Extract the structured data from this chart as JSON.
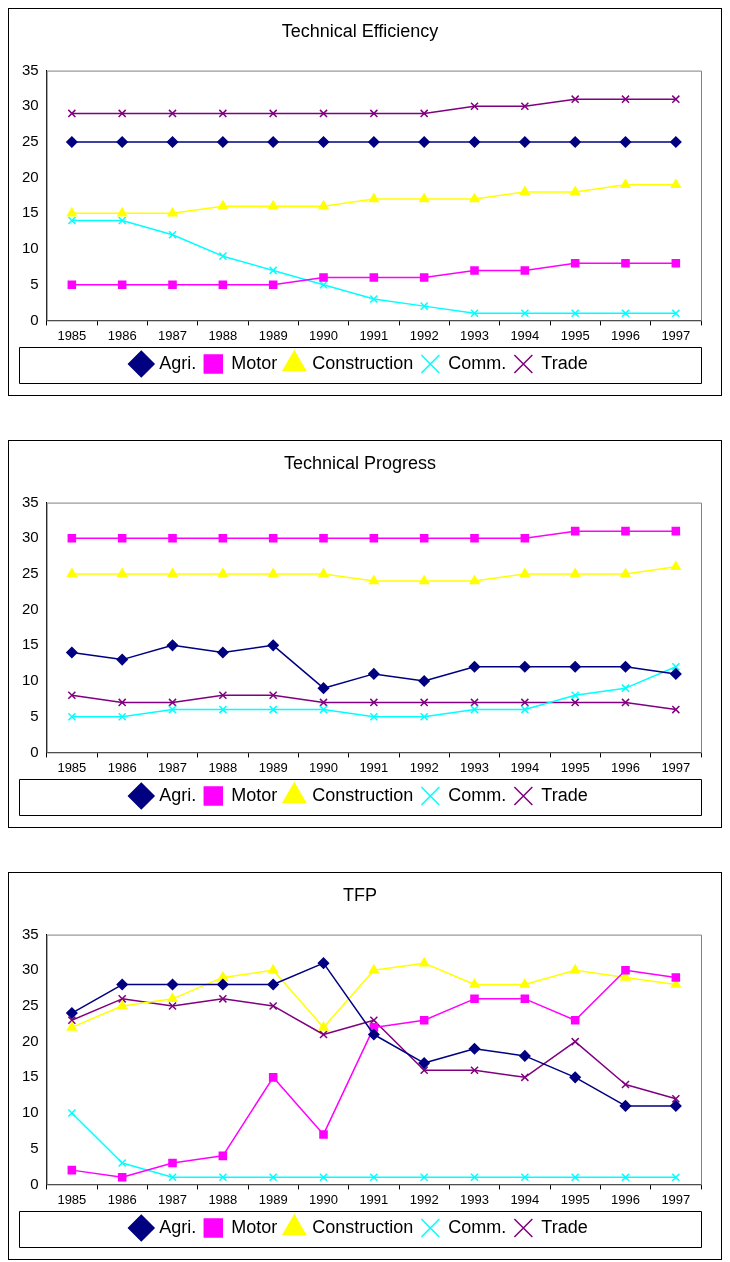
{
  "chart_data": [
    {
      "type": "line",
      "title": "Technical Efficiency",
      "categories": [
        "1985",
        "1986",
        "1987",
        "1988",
        "1989",
        "1990",
        "1991",
        "1992",
        "1993",
        "1994",
        "1995",
        "1996",
        "1997"
      ],
      "ylim": [
        0,
        35
      ],
      "yticks": [
        0,
        5,
        10,
        15,
        20,
        25,
        30,
        35
      ],
      "legend": "bottom",
      "series": [
        {
          "name": "Agri.",
          "color": "#000080",
          "marker": "diamond",
          "values": [
            25,
            25,
            25,
            25,
            25,
            25,
            25,
            25,
            25,
            25,
            25,
            25,
            25
          ]
        },
        {
          "name": "Motor",
          "color": "#ff00ff",
          "marker": "square",
          "values": [
            5,
            5,
            5,
            5,
            5,
            6,
            6,
            6,
            7,
            7,
            8,
            8,
            8
          ]
        },
        {
          "name": "Construction",
          "color": "#ffff00",
          "marker": "triangle",
          "values": [
            15,
            15,
            15,
            16,
            16,
            16,
            17,
            17,
            17,
            18,
            18,
            19,
            19
          ]
        },
        {
          "name": "Comm.",
          "color": "#00ffff",
          "marker": "cross",
          "values": [
            14,
            14,
            12,
            9,
            7,
            5,
            3,
            2,
            1,
            1,
            1,
            1,
            1
          ]
        },
        {
          "name": "Trade",
          "color": "#800080",
          "marker": "cross",
          "values": [
            29,
            29,
            29,
            29,
            29,
            29,
            29,
            29,
            30,
            30,
            31,
            31,
            31
          ]
        }
      ]
    },
    {
      "type": "line",
      "title": "Technical Progress",
      "categories": [
        "1985",
        "1986",
        "1987",
        "1988",
        "1989",
        "1990",
        "1991",
        "1992",
        "1993",
        "1994",
        "1995",
        "1996",
        "1997"
      ],
      "ylim": [
        0,
        35
      ],
      "yticks": [
        0,
        5,
        10,
        15,
        20,
        25,
        30,
        35
      ],
      "legend": "bottom",
      "series": [
        {
          "name": "Agri.",
          "color": "#000080",
          "marker": "diamond",
          "values": [
            14,
            13,
            15,
            14,
            15,
            9,
            11,
            10,
            12,
            12,
            12,
            12,
            11
          ]
        },
        {
          "name": "Motor",
          "color": "#ff00ff",
          "marker": "square",
          "values": [
            30,
            30,
            30,
            30,
            30,
            30,
            30,
            30,
            30,
            30,
            31,
            31,
            31
          ]
        },
        {
          "name": "Construction",
          "color": "#ffff00",
          "marker": "triangle",
          "values": [
            25,
            25,
            25,
            25,
            25,
            25,
            24,
            24,
            24,
            25,
            25,
            25,
            26
          ]
        },
        {
          "name": "Comm.",
          "color": "#00ffff",
          "marker": "cross",
          "values": [
            5,
            5,
            6,
            6,
            6,
            6,
            5,
            5,
            6,
            6,
            8,
            9,
            12
          ]
        },
        {
          "name": "Trade",
          "color": "#800080",
          "marker": "cross",
          "values": [
            8,
            7,
            7,
            8,
            8,
            7,
            7,
            7,
            7,
            7,
            7,
            7,
            6
          ]
        }
      ]
    },
    {
      "type": "line",
      "title": "TFP",
      "categories": [
        "1985",
        "1986",
        "1987",
        "1988",
        "1989",
        "1990",
        "1991",
        "1992",
        "1993",
        "1994",
        "1995",
        "1996",
        "1997"
      ],
      "ylim": [
        0,
        35
      ],
      "yticks": [
        0,
        5,
        10,
        15,
        20,
        25,
        30,
        35
      ],
      "legend": "bottom",
      "series": [
        {
          "name": "Agri.",
          "color": "#000080",
          "marker": "diamond",
          "values": [
            24,
            28,
            28,
            28,
            28,
            31,
            21,
            17,
            19,
            18,
            15,
            11,
            11
          ]
        },
        {
          "name": "Motor",
          "color": "#ff00ff",
          "marker": "square",
          "values": [
            2,
            1,
            3,
            4,
            15,
            7,
            22,
            23,
            26,
            26,
            23,
            30,
            29
          ]
        },
        {
          "name": "Construction",
          "color": "#ffff00",
          "marker": "triangle",
          "values": [
            22,
            25,
            26,
            29,
            30,
            22,
            30,
            31,
            28,
            28,
            30,
            29,
            28
          ]
        },
        {
          "name": "Comm.",
          "color": "#00ffff",
          "marker": "cross",
          "values": [
            10,
            3,
            1,
            1,
            1,
            1,
            1,
            1,
            1,
            1,
            1,
            1,
            1
          ]
        },
        {
          "name": "Trade",
          "color": "#800080",
          "marker": "cross",
          "values": [
            23,
            26,
            25,
            26,
            25,
            21,
            23,
            16,
            16,
            15,
            20,
            14,
            12
          ]
        }
      ]
    }
  ]
}
